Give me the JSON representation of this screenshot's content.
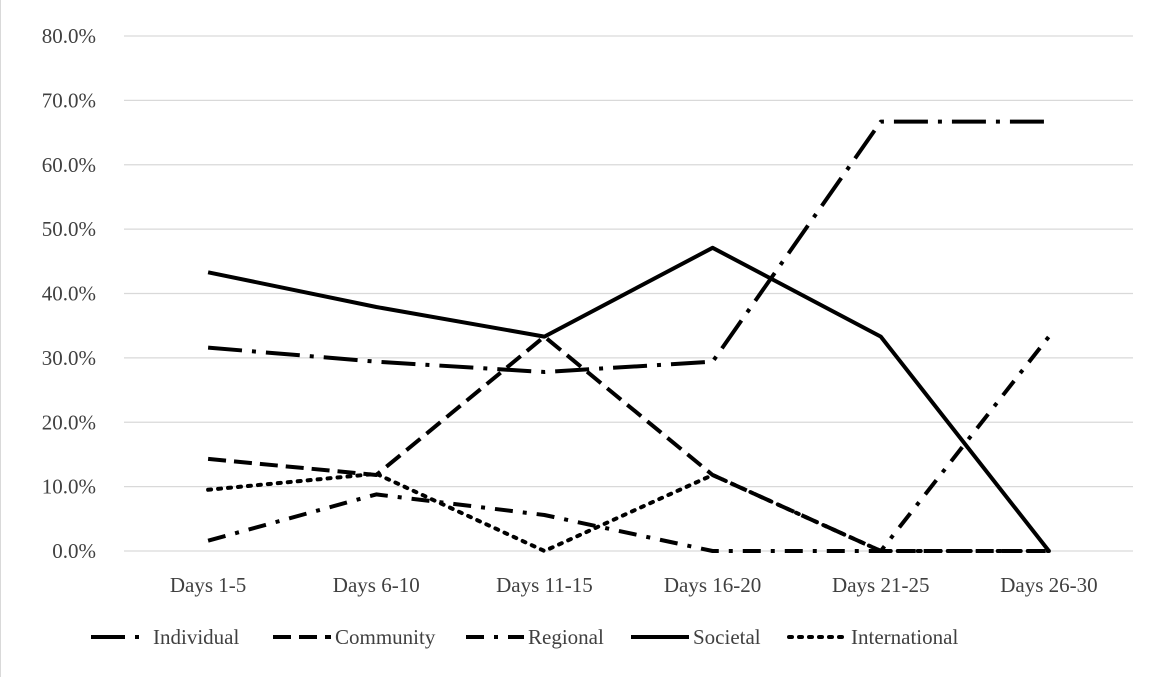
{
  "chart_data": {
    "type": "line",
    "title": "",
    "xlabel": "",
    "ylabel": "",
    "categories": [
      "Days 1-5",
      "Days 6-10",
      "Days 11-15",
      "Days 16-20",
      "Days 21-25",
      "Days 26-30"
    ],
    "ylim": [
      0,
      80
    ],
    "yticks": [
      0,
      10,
      20,
      30,
      40,
      50,
      60,
      70,
      80
    ],
    "ytick_labels": [
      "0.0%",
      "10.0%",
      "20.0%",
      "30.0%",
      "40.0%",
      "50.0%",
      "60.0%",
      "70.0%",
      "80.0%"
    ],
    "grid": true,
    "legend_position": "bottom",
    "series": [
      {
        "name": "Individual",
        "style": "long-dash-dot",
        "values": [
          31.6,
          29.4,
          27.8,
          29.4,
          66.7,
          66.7
        ]
      },
      {
        "name": "Community",
        "style": "dash",
        "values": [
          14.3,
          11.8,
          33.3,
          11.8,
          0.0,
          0.0
        ]
      },
      {
        "name": "Regional",
        "style": "dash-dot",
        "values": [
          1.6,
          8.8,
          5.6,
          0.0,
          0.0,
          33.3
        ]
      },
      {
        "name": "Societal",
        "style": "solid",
        "values": [
          43.3,
          37.9,
          33.3,
          47.1,
          33.3,
          0.0
        ]
      },
      {
        "name": "International",
        "style": "dot",
        "values": [
          9.5,
          12.0,
          0.0,
          11.8,
          0.0,
          0.0
        ]
      }
    ],
    "colors": {
      "line": "#000000",
      "grid": "#d9d9d9",
      "text": "#404040"
    }
  }
}
